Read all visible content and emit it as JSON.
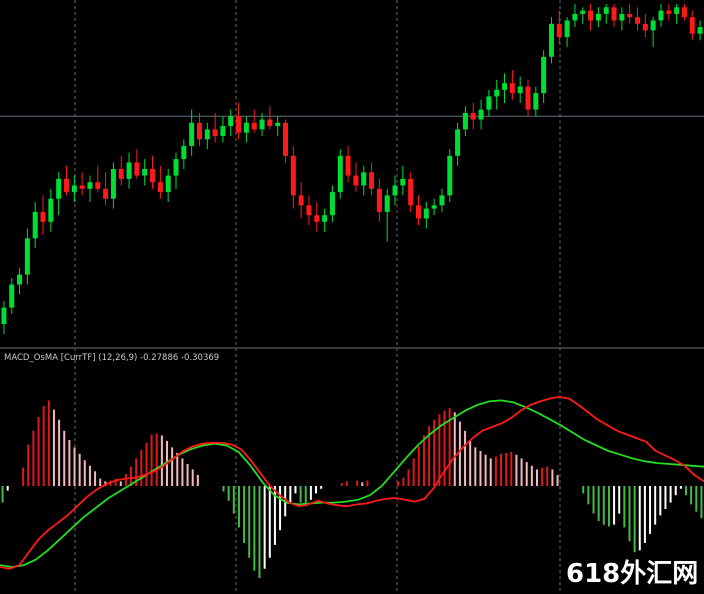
{
  "indicator_label": "MACD_OsMA [CurrTF] (12,26,9) -0.27886 -0.30369",
  "watermark": "618外汇网",
  "chart_data": [
    {
      "type": "candlestick",
      "title": "",
      "xlabel": "",
      "ylabel": "",
      "ylim": [
        0,
        100
      ],
      "grid": "vertical dashed",
      "horizontal_level": 66,
      "colors": {
        "up": "#00dd33",
        "down": "#ff1a1a",
        "background": "#000000",
        "grid": "#6a6a6a",
        "level": "#5a7080"
      },
      "candles": [
        {
          "o": 3,
          "h": 10,
          "l": 0,
          "c": 8
        },
        {
          "o": 8,
          "h": 17,
          "l": 6,
          "c": 15
        },
        {
          "o": 15,
          "h": 20,
          "l": 12,
          "c": 18
        },
        {
          "o": 18,
          "h": 32,
          "l": 15,
          "c": 29
        },
        {
          "o": 29,
          "h": 40,
          "l": 26,
          "c": 37
        },
        {
          "o": 37,
          "h": 42,
          "l": 30,
          "c": 34
        },
        {
          "o": 34,
          "h": 44,
          "l": 31,
          "c": 41
        },
        {
          "o": 41,
          "h": 49,
          "l": 36,
          "c": 47
        },
        {
          "o": 47,
          "h": 51,
          "l": 42,
          "c": 43
        },
        {
          "o": 43,
          "h": 48,
          "l": 40,
          "c": 45
        },
        {
          "o": 45,
          "h": 49,
          "l": 42,
          "c": 44
        },
        {
          "o": 44,
          "h": 48,
          "l": 40,
          "c": 46
        },
        {
          "o": 46,
          "h": 51,
          "l": 43,
          "c": 44
        },
        {
          "o": 44,
          "h": 49,
          "l": 39,
          "c": 41
        },
        {
          "o": 41,
          "h": 52,
          "l": 38,
          "c": 50
        },
        {
          "o": 50,
          "h": 54,
          "l": 45,
          "c": 47
        },
        {
          "o": 47,
          "h": 55,
          "l": 44,
          "c": 52
        },
        {
          "o": 52,
          "h": 56,
          "l": 47,
          "c": 48
        },
        {
          "o": 48,
          "h": 53,
          "l": 45,
          "c": 50
        },
        {
          "o": 50,
          "h": 54,
          "l": 44,
          "c": 46
        },
        {
          "o": 46,
          "h": 51,
          "l": 41,
          "c": 43
        },
        {
          "o": 43,
          "h": 50,
          "l": 40,
          "c": 48
        },
        {
          "o": 48,
          "h": 55,
          "l": 44,
          "c": 53
        },
        {
          "o": 53,
          "h": 59,
          "l": 50,
          "c": 57
        },
        {
          "o": 57,
          "h": 68,
          "l": 54,
          "c": 64
        },
        {
          "o": 64,
          "h": 67,
          "l": 57,
          "c": 59
        },
        {
          "o": 59,
          "h": 64,
          "l": 56,
          "c": 62
        },
        {
          "o": 62,
          "h": 67,
          "l": 58,
          "c": 60
        },
        {
          "o": 60,
          "h": 66,
          "l": 58,
          "c": 63
        },
        {
          "o": 63,
          "h": 68,
          "l": 60,
          "c": 66
        },
        {
          "o": 66,
          "h": 70,
          "l": 59,
          "c": 61
        },
        {
          "o": 61,
          "h": 66,
          "l": 58,
          "c": 64
        },
        {
          "o": 64,
          "h": 68,
          "l": 61,
          "c": 62
        },
        {
          "o": 62,
          "h": 67,
          "l": 60,
          "c": 65
        },
        {
          "o": 65,
          "h": 69,
          "l": 62,
          "c": 63
        },
        {
          "o": 63,
          "h": 66,
          "l": 60,
          "c": 64
        },
        {
          "o": 64,
          "h": 65,
          "l": 52,
          "c": 54
        },
        {
          "o": 54,
          "h": 57,
          "l": 38,
          "c": 42
        },
        {
          "o": 42,
          "h": 46,
          "l": 35,
          "c": 39
        },
        {
          "o": 39,
          "h": 42,
          "l": 33,
          "c": 36
        },
        {
          "o": 36,
          "h": 40,
          "l": 31,
          "c": 34
        },
        {
          "o": 34,
          "h": 38,
          "l": 31,
          "c": 36
        },
        {
          "o": 36,
          "h": 45,
          "l": 34,
          "c": 43
        },
        {
          "o": 43,
          "h": 56,
          "l": 41,
          "c": 54
        },
        {
          "o": 54,
          "h": 57,
          "l": 46,
          "c": 48
        },
        {
          "o": 48,
          "h": 52,
          "l": 43,
          "c": 45
        },
        {
          "o": 45,
          "h": 51,
          "l": 42,
          "c": 49
        },
        {
          "o": 49,
          "h": 52,
          "l": 42,
          "c": 44
        },
        {
          "o": 44,
          "h": 47,
          "l": 34,
          "c": 37
        },
        {
          "o": 37,
          "h": 44,
          "l": 28,
          "c": 42
        },
        {
          "o": 42,
          "h": 48,
          "l": 39,
          "c": 45
        },
        {
          "o": 45,
          "h": 51,
          "l": 42,
          "c": 47
        },
        {
          "o": 47,
          "h": 49,
          "l": 37,
          "c": 39
        },
        {
          "o": 39,
          "h": 42,
          "l": 33,
          "c": 35
        },
        {
          "o": 35,
          "h": 40,
          "l": 32,
          "c": 38
        },
        {
          "o": 38,
          "h": 41,
          "l": 36,
          "c": 39
        },
        {
          "o": 39,
          "h": 44,
          "l": 37,
          "c": 42
        },
        {
          "o": 42,
          "h": 56,
          "l": 40,
          "c": 54
        },
        {
          "o": 54,
          "h": 64,
          "l": 51,
          "c": 62
        },
        {
          "o": 62,
          "h": 69,
          "l": 60,
          "c": 67
        },
        {
          "o": 67,
          "h": 70,
          "l": 62,
          "c": 65
        },
        {
          "o": 65,
          "h": 71,
          "l": 62,
          "c": 68
        },
        {
          "o": 68,
          "h": 74,
          "l": 66,
          "c": 72
        },
        {
          "o": 72,
          "h": 77,
          "l": 68,
          "c": 74
        },
        {
          "o": 74,
          "h": 79,
          "l": 70,
          "c": 76
        },
        {
          "o": 76,
          "h": 80,
          "l": 71,
          "c": 73
        },
        {
          "o": 73,
          "h": 78,
          "l": 70,
          "c": 75
        },
        {
          "o": 75,
          "h": 77,
          "l": 66,
          "c": 68
        },
        {
          "o": 68,
          "h": 75,
          "l": 66,
          "c": 73
        },
        {
          "o": 73,
          "h": 86,
          "l": 70,
          "c": 84
        },
        {
          "o": 84,
          "h": 96,
          "l": 82,
          "c": 94
        },
        {
          "o": 94,
          "h": 98,
          "l": 88,
          "c": 90
        },
        {
          "o": 90,
          "h": 96,
          "l": 87,
          "c": 95
        },
        {
          "o": 95,
          "h": 100,
          "l": 93,
          "c": 97
        },
        {
          "o": 97,
          "h": 99,
          "l": 94,
          "c": 98
        },
        {
          "o": 98,
          "h": 100,
          "l": 92,
          "c": 95
        },
        {
          "o": 95,
          "h": 99,
          "l": 93,
          "c": 97
        },
        {
          "o": 97,
          "h": 100,
          "l": 94,
          "c": 99
        },
        {
          "o": 99,
          "h": 100,
          "l": 93,
          "c": 95
        },
        {
          "o": 95,
          "h": 99,
          "l": 92,
          "c": 97
        },
        {
          "o": 97,
          "h": 100,
          "l": 94,
          "c": 96
        },
        {
          "o": 96,
          "h": 99,
          "l": 92,
          "c": 94
        },
        {
          "o": 94,
          "h": 97,
          "l": 90,
          "c": 92
        },
        {
          "o": 92,
          "h": 96,
          "l": 87,
          "c": 95
        },
        {
          "o": 95,
          "h": 100,
          "l": 93,
          "c": 98
        },
        {
          "o": 98,
          "h": 100,
          "l": 95,
          "c": 97
        },
        {
          "o": 97,
          "h": 100,
          "l": 94,
          "c": 99
        },
        {
          "o": 99,
          "h": 100,
          "l": 95,
          "c": 96
        },
        {
          "o": 96,
          "h": 98,
          "l": 89,
          "c": 91
        },
        {
          "o": 91,
          "h": 95,
          "l": 89,
          "c": 93
        }
      ]
    },
    {
      "type": "bar",
      "title": "MACD_OsMA [CurrTF] (12,26,9)",
      "xlabel": "",
      "ylabel": "",
      "ylim": [
        -1,
        1
      ],
      "colors": {
        "pos_rising": "#e01818",
        "pos_falling": "#f5b8c0",
        "neg_falling": "#44bb44",
        "neg_rising": "#ffffff",
        "macd_line": "#ff1a1a",
        "signal_line": "#22dd22",
        "grid": "#6a6a6a"
      },
      "histogram": [
        -0.18,
        -0.05,
        0,
        0,
        0.2,
        0.45,
        0.6,
        0.75,
        0.87,
        0.93,
        0.83,
        0.72,
        0.6,
        0.5,
        0.42,
        0.35,
        0.28,
        0.22,
        0.16,
        0.08,
        0.05,
        0.06,
        0.08,
        0.05,
        0.13,
        0.21,
        0.3,
        0.39,
        0.47,
        0.56,
        0.57,
        0.55,
        0.49,
        0.42,
        0.36,
        0.3,
        0.24,
        0.18,
        0.12,
        0,
        0,
        0,
        0,
        -0.06,
        -0.16,
        -0.3,
        -0.45,
        -0.62,
        -0.78,
        -0.92,
        -1,
        -0.9,
        -0.78,
        -0.64,
        -0.48,
        -0.33,
        -0.19,
        -0.08,
        -0.18,
        -0.22,
        -0.15,
        -0.08,
        -0.03,
        0,
        0,
        0,
        0.03,
        0.05,
        0,
        0.06,
        0.04,
        0.06,
        0,
        0,
        0,
        0,
        0,
        0.05,
        0.09,
        0.18,
        0.3,
        0.43,
        0.55,
        0.65,
        0.72,
        0.78,
        0.82,
        0.85,
        0.8,
        0.7,
        0.6,
        0.5,
        0.42,
        0.38,
        0.34,
        0.3,
        0.32,
        0.35,
        0.36,
        0.37,
        0.34,
        0.3,
        0.26,
        0.22,
        0.18,
        0.2,
        0.21,
        0.18,
        0.12,
        0,
        0,
        0,
        0,
        -0.08,
        -0.2,
        -0.3,
        -0.38,
        -0.42,
        -0.44,
        -0.42,
        -0.3,
        -0.45,
        -0.6,
        -0.72,
        -0.7,
        -0.62,
        -0.52,
        -0.42,
        -0.32,
        -0.25,
        -0.18,
        -0.1,
        -0.03,
        -0.1,
        -0.2,
        -0.28,
        -0.35
      ],
      "macd": [
        -0.88,
        -0.9,
        -0.86,
        -0.72,
        -0.58,
        -0.48,
        -0.4,
        -0.32,
        -0.22,
        -0.12,
        -0.04,
        0.02,
        0.06,
        0.08,
        0.09,
        0.12,
        0.16,
        0.22,
        0.3,
        0.38,
        0.43,
        0.46,
        0.47,
        0.47,
        0.45,
        0.4,
        0.28,
        0.14,
        0.0,
        -0.1,
        -0.18,
        -0.22,
        -0.2,
        -0.16,
        -0.19,
        -0.21,
        -0.22,
        -0.2,
        -0.19,
        -0.16,
        -0.14,
        -0.13,
        -0.15,
        -0.17,
        -0.14,
        -0.02,
        0.15,
        0.3,
        0.42,
        0.52,
        0.6,
        0.64,
        0.68,
        0.74,
        0.82,
        0.88,
        0.92,
        0.95,
        0.97,
        0.95,
        0.88,
        0.8,
        0.72,
        0.66,
        0.6,
        0.56,
        0.52,
        0.48,
        0.38,
        0.33,
        0.28,
        0.22,
        0.12,
        0.05
      ],
      "signal": [
        -0.86,
        -0.88,
        -0.86,
        -0.8,
        -0.7,
        -0.58,
        -0.46,
        -0.34,
        -0.24,
        -0.14,
        -0.06,
        0.02,
        0.1,
        0.18,
        0.26,
        0.34,
        0.4,
        0.44,
        0.46,
        0.44,
        0.37,
        0.22,
        0.04,
        -0.1,
        -0.18,
        -0.2,
        -0.19,
        -0.18,
        -0.18,
        -0.17,
        -0.15,
        -0.1,
        0.0,
        0.15,
        0.3,
        0.44,
        0.56,
        0.66,
        0.74,
        0.82,
        0.88,
        0.92,
        0.93,
        0.91,
        0.86,
        0.8,
        0.73,
        0.66,
        0.58,
        0.5,
        0.44,
        0.38,
        0.34,
        0.3,
        0.27,
        0.25,
        0.24,
        0.23,
        0.22,
        0.21
      ]
    }
  ]
}
